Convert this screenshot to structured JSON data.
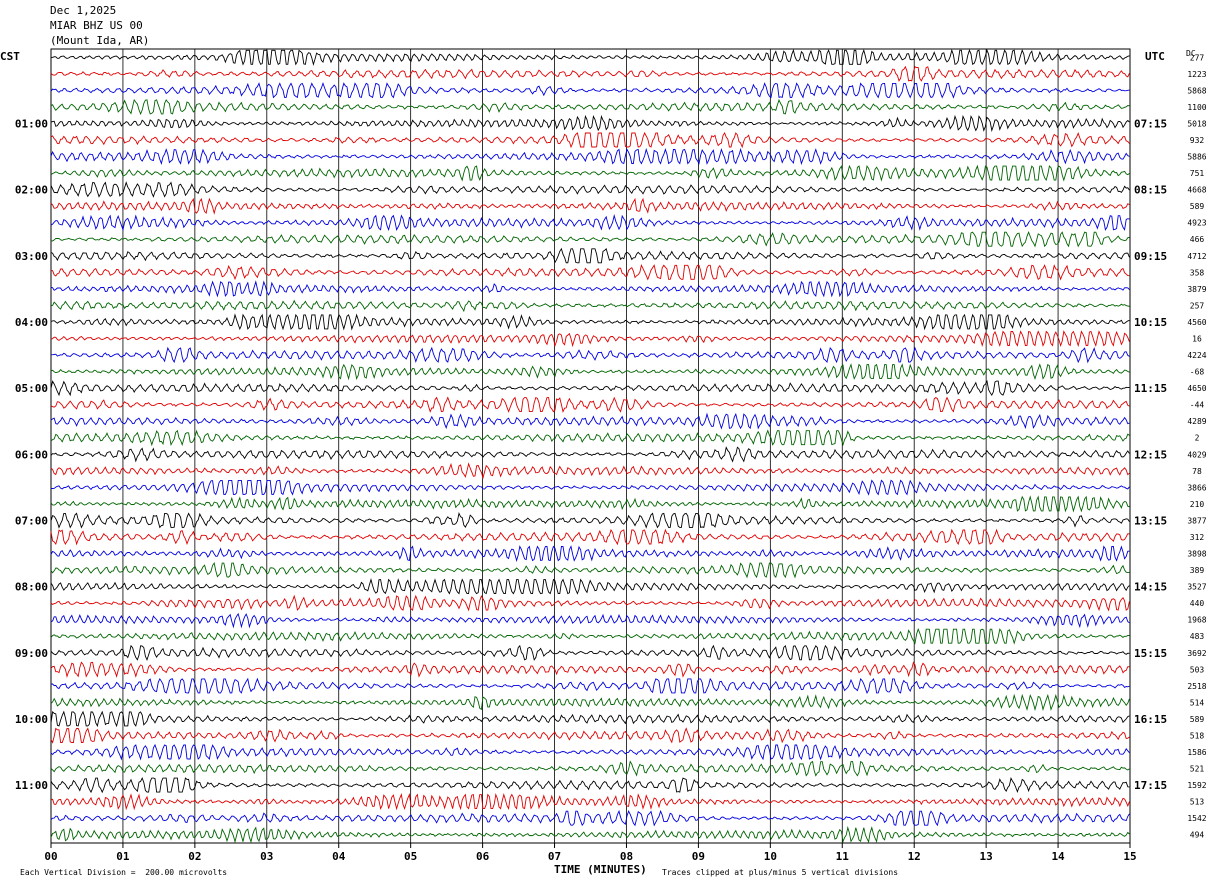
{
  "header": {
    "date": "Dec 1,2025",
    "station": "MIAR BHZ US 00",
    "location": "(Mount Ida, AR)"
  },
  "footer": {
    "scale_note": "Each Vertical Division =  200.00 microvolts",
    "clip_note": "Traces clipped at plus/minus 5 vertical divisions"
  },
  "chart_data": {
    "type": "line",
    "title": "",
    "xlabel": "TIME (MINUTES)",
    "left_axis_label": "CST",
    "right_axis_label": "UTC",
    "dc_label": "DC",
    "xlim": [
      0,
      15
    ],
    "x_ticks": [
      "00",
      "01",
      "02",
      "03",
      "04",
      "05",
      "06",
      "07",
      "08",
      "09",
      "10",
      "11",
      "12",
      "13",
      "14",
      "15"
    ],
    "rows": 48,
    "trace_colors": [
      "#000000",
      "#e00000",
      "#0000e0",
      "#006400"
    ],
    "left_hour_labels": [
      "01:00",
      "02:00",
      "03:00",
      "04:00",
      "05:00",
      "06:00",
      "07:00",
      "08:00",
      "09:00",
      "10:00",
      "11:00"
    ],
    "right_hour_labels": [
      "07:15",
      "08:15",
      "09:15",
      "10:15",
      "11:15",
      "12:15",
      "13:15",
      "14:15",
      "15:15",
      "16:15",
      "17:15"
    ],
    "dc_offsets": [
      "277",
      "1223",
      "5868",
      "1100",
      "5018",
      "932",
      "5886",
      "751",
      "4668",
      "589",
      "4923",
      "466",
      "4712",
      "358",
      "3879",
      "257",
      "4560",
      "16",
      "4224",
      "-68",
      "4650",
      "-44",
      "4289",
      "2",
      "4029",
      "78",
      "3866",
      "210",
      "3877",
      "312",
      "3898",
      "389",
      "3527",
      "440",
      "1968",
      "483",
      "3692",
      "503",
      "2518",
      "514",
      "589",
      "518",
      "1586",
      "521",
      "1592",
      "513",
      "1542",
      "494"
    ],
    "grid": true
  }
}
